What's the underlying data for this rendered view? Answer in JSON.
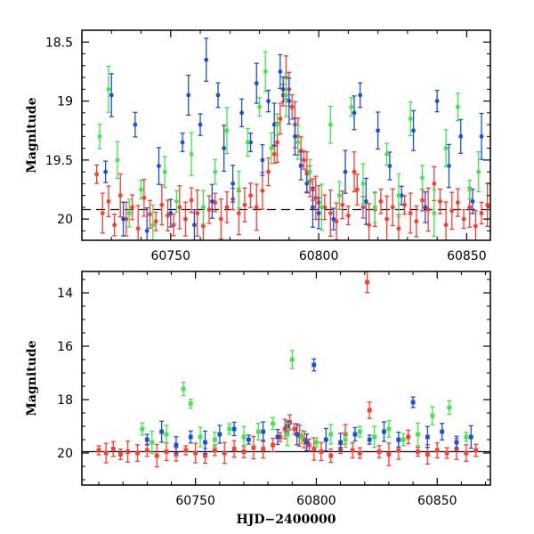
{
  "chart_data": [
    {
      "type": "scatter",
      "title": "",
      "xlabel": "",
      "ylabel": "Magnitude",
      "xlim": [
        60720,
        60858
      ],
      "ylim": [
        20.18,
        18.4
      ],
      "y_inverted": true,
      "grid": false,
      "legend": "none",
      "x_ticks": [
        60750,
        60800,
        60850
      ],
      "y_ticks": [
        18.5,
        19,
        19.5,
        20
      ],
      "x_tick_labels": [
        "60750",
        "60800",
        "60850"
      ],
      "y_tick_labels": [
        "18.5",
        "19",
        "19.5",
        "20"
      ],
      "reference_line": {
        "y": 19.92,
        "style": "dashed"
      },
      "error_bars": true,
      "series": [
        {
          "color": "#ff3b30",
          "points": [
            [
              60725,
              19.62
            ],
            [
              60727,
              19.95
            ],
            [
              60729,
              19.85
            ],
            [
              60731,
              20.05
            ],
            [
              60733,
              19.8
            ],
            [
              60735,
              20.0
            ],
            [
              60737,
              19.9
            ],
            [
              60739,
              20.08
            ],
            [
              60741,
              19.82
            ],
            [
              60743,
              19.96
            ],
            [
              60745,
              20.02
            ],
            [
              60747,
              19.88
            ],
            [
              60749,
              19.97
            ],
            [
              60751,
              20.05
            ],
            [
              60753,
              19.9
            ],
            [
              60755,
              20.0
            ],
            [
              60757,
              19.84
            ],
            [
              60759,
              19.95
            ],
            [
              60761,
              20.06
            ],
            [
              60763,
              19.92
            ],
            [
              60765,
              19.86
            ],
            [
              60767,
              20.0
            ],
            [
              60769,
              19.9
            ],
            [
              60771,
              19.83
            ],
            [
              60773,
              19.95
            ],
            [
              60775,
              19.88
            ],
            [
              60777,
              19.8
            ],
            [
              60779,
              19.9
            ],
            [
              60781,
              19.76
            ],
            [
              60783,
              19.6
            ],
            [
              60785,
              19.45
            ],
            [
              60786,
              19.35
            ],
            [
              60787,
              19.15
            ],
            [
              60788,
              18.95
            ],
            [
              60789,
              18.8
            ],
            [
              60790,
              18.9
            ],
            [
              60791,
              19.05
            ],
            [
              60792,
              19.2
            ],
            [
              60793,
              19.3
            ],
            [
              60794,
              19.42
            ],
            [
              60795,
              19.5
            ],
            [
              60796,
              19.6
            ],
            [
              60797,
              19.68
            ],
            [
              60798,
              19.75
            ],
            [
              60799,
              19.82
            ],
            [
              60800,
              19.86
            ],
            [
              60802,
              19.9
            ],
            [
              60804,
              19.95
            ],
            [
              60806,
              20.02
            ],
            [
              60808,
              19.88
            ],
            [
              60810,
              19.97
            ],
            [
              60812,
              19.6
            ],
            [
              60813,
              19.75
            ],
            [
              60815,
              19.9
            ],
            [
              60817,
              20.05
            ],
            [
              60819,
              19.92
            ],
            [
              60821,
              19.85
            ],
            [
              60823,
              20.0
            ],
            [
              60825,
              19.9
            ],
            [
              60827,
              20.08
            ],
            [
              60829,
              19.88
            ],
            [
              60831,
              19.95
            ],
            [
              60833,
              20.02
            ],
            [
              60835,
              19.84
            ],
            [
              60837,
              19.92
            ],
            [
              60839,
              19.7
            ],
            [
              60841,
              19.85
            ],
            [
              60843,
              20.05
            ],
            [
              60845,
              19.93
            ],
            [
              60847,
              19.86
            ],
            [
              60849,
              20.0
            ],
            [
              60851,
              19.9
            ],
            [
              60853,
              20.06
            ],
            [
              60855,
              19.95
            ],
            [
              60857,
              19.88
            ]
          ]
        },
        {
          "color": "#1a4fd8",
          "points": [
            [
              60728,
              19.6
            ],
            [
              60730,
              18.95
            ],
            [
              60734,
              20.0
            ],
            [
              60738,
              19.2
            ],
            [
              60742,
              20.1
            ],
            [
              60746,
              19.55
            ],
            [
              60750,
              19.95
            ],
            [
              60754,
              19.35
            ],
            [
              60756,
              18.95
            ],
            [
              60758,
              20.05
            ],
            [
              60760,
              19.2
            ],
            [
              60762,
              18.65
            ],
            [
              60764,
              19.85
            ],
            [
              60766,
              18.95
            ],
            [
              60768,
              19.4
            ],
            [
              60771,
              19.7
            ],
            [
              60774,
              19.1
            ],
            [
              60777,
              19.35
            ],
            [
              60779,
              18.85
            ],
            [
              60781,
              19.5
            ],
            [
              60783,
              19.0
            ],
            [
              60785,
              19.2
            ],
            [
              60787,
              18.75
            ],
            [
              60788,
              18.9
            ],
            [
              60790,
              19.0
            ],
            [
              60792,
              19.3
            ],
            [
              60794,
              19.55
            ],
            [
              60796,
              19.7
            ],
            [
              60798,
              19.9
            ],
            [
              60800,
              19.95
            ],
            [
              60805,
              20.0
            ],
            [
              60809,
              19.6
            ],
            [
              60812,
              19.1
            ],
            [
              60814,
              18.95
            ],
            [
              60816,
              19.85
            ],
            [
              60820,
              19.25
            ],
            [
              60824,
              19.55
            ],
            [
              60828,
              19.8
            ],
            [
              60832,
              19.25
            ],
            [
              60836,
              19.9
            ],
            [
              60840,
              19.0
            ],
            [
              60844,
              19.55
            ],
            [
              60848,
              19.3
            ],
            [
              60852,
              19.85
            ],
            [
              60855,
              19.3
            ]
          ]
        },
        {
          "color": "#3ee64a",
          "points": [
            [
              60726,
              19.3
            ],
            [
              60729,
              18.9
            ],
            [
              60732,
              19.5
            ],
            [
              60736,
              19.95
            ],
            [
              60740,
              19.75
            ],
            [
              60744,
              20.05
            ],
            [
              60748,
              19.6
            ],
            [
              60752,
              19.85
            ],
            [
              60757,
              19.45
            ],
            [
              60761,
              19.9
            ],
            [
              60765,
              19.6
            ],
            [
              60769,
              19.25
            ],
            [
              60773,
              19.75
            ],
            [
              60776,
              19.35
            ],
            [
              60780,
              19.05
            ],
            [
              60782,
              18.75
            ],
            [
              60784,
              19.4
            ],
            [
              60786,
              19.2
            ],
            [
              60789,
              18.95
            ],
            [
              60793,
              19.35
            ],
            [
              60797,
              19.6
            ],
            [
              60801,
              19.9
            ],
            [
              60804,
              19.2
            ],
            [
              60807,
              19.8
            ],
            [
              60811,
              19.05
            ],
            [
              60815,
              19.7
            ],
            [
              60819,
              19.9
            ],
            [
              60823,
              19.45
            ],
            [
              60827,
              19.8
            ],
            [
              60831,
              19.15
            ],
            [
              60835,
              19.65
            ],
            [
              60839,
              19.95
            ],
            [
              60843,
              19.4
            ],
            [
              60847,
              19.05
            ],
            [
              60851,
              19.75
            ],
            [
              60854,
              19.6
            ]
          ]
        }
      ]
    },
    {
      "type": "scatter",
      "title": "",
      "xlabel": "HJD−2400000",
      "ylabel": "Magnitude",
      "xlim": [
        60703,
        60872
      ],
      "ylim": [
        21.2,
        13.2
      ],
      "y_inverted": true,
      "grid": false,
      "legend": "none",
      "x_ticks": [
        60750,
        60800,
        60850
      ],
      "y_ticks": [
        14,
        16,
        18,
        20
      ],
      "x_tick_labels": [
        "60750",
        "60800",
        "60850"
      ],
      "y_tick_labels": [
        "14",
        "16",
        "18",
        "20"
      ],
      "reference_line": {
        "y": 19.95,
        "style": "solid"
      },
      "error_bars": true,
      "series": [
        {
          "color": "#ff3b30",
          "points": [
            [
              60710,
              19.9
            ],
            [
              60713,
              20.0
            ],
            [
              60716,
              19.85
            ],
            [
              60719,
              20.05
            ],
            [
              60722,
              19.95
            ],
            [
              60726,
              20.0
            ],
            [
              60730,
              19.9
            ],
            [
              60734,
              20.1
            ],
            [
              60738,
              19.95
            ],
            [
              60742,
              20.05
            ],
            [
              60746,
              19.9
            ],
            [
              60750,
              20.0
            ],
            [
              60754,
              20.1
            ],
            [
              60758,
              19.9
            ],
            [
              60762,
              20.0
            ],
            [
              60766,
              19.85
            ],
            [
              60770,
              19.95
            ],
            [
              60774,
              19.8
            ],
            [
              60778,
              19.85
            ],
            [
              60782,
              19.7
            ],
            [
              60785,
              19.4
            ],
            [
              60787,
              19.1
            ],
            [
              60789,
              18.85
            ],
            [
              60791,
              19.1
            ],
            [
              60793,
              19.35
            ],
            [
              60795,
              19.5
            ],
            [
              60797,
              19.7
            ],
            [
              60799,
              19.85
            ],
            [
              60802,
              19.95
            ],
            [
              60806,
              20.1
            ],
            [
              60810,
              19.85
            ],
            [
              60812,
              19.3
            ],
            [
              60815,
              19.9
            ],
            [
              60818,
              20.0
            ],
            [
              60821,
              13.6
            ],
            [
              60822,
              18.4
            ],
            [
              60826,
              19.95
            ],
            [
              60830,
              20.05
            ],
            [
              60834,
              19.9
            ],
            [
              60838,
              19.4
            ],
            [
              60842,
              19.95
            ],
            [
              60846,
              20.05
            ],
            [
              60850,
              19.9
            ],
            [
              60854,
              20.0
            ],
            [
              60858,
              19.85
            ],
            [
              60862,
              20.0
            ],
            [
              60866,
              19.9
            ]
          ]
        },
        {
          "color": "#1a4fd8",
          "points": [
            [
              60730,
              19.5
            ],
            [
              60736,
              19.2
            ],
            [
              60742,
              19.7
            ],
            [
              60748,
              19.4
            ],
            [
              60754,
              19.6
            ],
            [
              60760,
              19.3
            ],
            [
              60766,
              19.1
            ],
            [
              60772,
              19.5
            ],
            [
              60778,
              19.2
            ],
            [
              60784,
              19.4
            ],
            [
              60788,
              19.0
            ],
            [
              60792,
              19.3
            ],
            [
              60796,
              19.6
            ],
            [
              60799,
              16.7
            ],
            [
              60804,
              19.5
            ],
            [
              60810,
              19.6
            ],
            [
              60816,
              19.3
            ],
            [
              60822,
              19.5
            ],
            [
              60828,
              19.2
            ],
            [
              60834,
              19.5
            ],
            [
              60840,
              18.1
            ],
            [
              60846,
              19.4
            ],
            [
              60852,
              19.2
            ],
            [
              60858,
              19.6
            ],
            [
              60864,
              19.4
            ]
          ]
        },
        {
          "color": "#3ee64a",
          "points": [
            [
              60728,
              19.1
            ],
            [
              60732,
              19.6
            ],
            [
              60738,
              19.3
            ],
            [
              60745,
              17.6
            ],
            [
              60748,
              18.15
            ],
            [
              60752,
              19.4
            ],
            [
              60758,
              19.5
            ],
            [
              60764,
              19.1
            ],
            [
              60770,
              19.4
            ],
            [
              60776,
              19.2
            ],
            [
              60782,
              18.9
            ],
            [
              60788,
              19.3
            ],
            [
              60790,
              16.5
            ],
            [
              60794,
              19.4
            ],
            [
              60800,
              19.6
            ],
            [
              60806,
              19.3
            ],
            [
              60812,
              19.5
            ],
            [
              60818,
              19.2
            ],
            [
              60824,
              19.4
            ],
            [
              60830,
              19.1
            ],
            [
              60836,
              19.5
            ],
            [
              60842,
              19.3
            ],
            [
              60848,
              18.6
            ],
            [
              60855,
              18.3
            ],
            [
              60862,
              19.4
            ]
          ]
        }
      ]
    }
  ]
}
